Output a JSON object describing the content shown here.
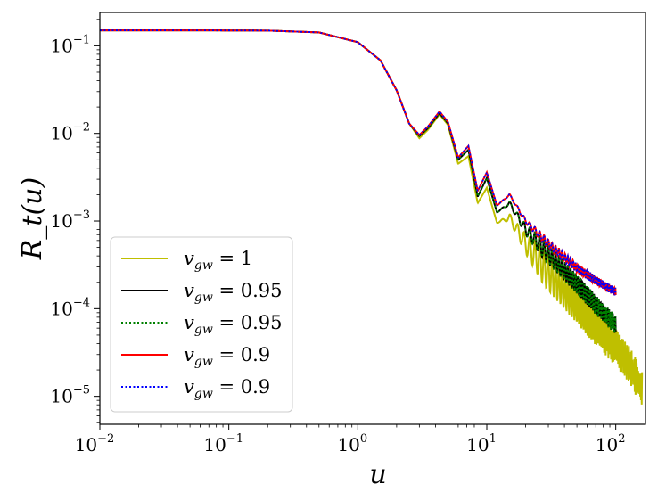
{
  "chart_data": {
    "type": "line",
    "xscale": "log",
    "yscale": "log",
    "xlim": [
      0.01,
      170
    ],
    "ylim": [
      4.8e-06,
      0.24
    ],
    "xlabel": "u",
    "ylabel": "R_t(u)",
    "x_ticks": [
      {
        "value": 0.01,
        "base": "10",
        "exp": "−2"
      },
      {
        "value": 0.1,
        "base": "10",
        "exp": "−1"
      },
      {
        "value": 1,
        "base": "10",
        "exp": "0"
      },
      {
        "value": 10,
        "base": "10",
        "exp": "1"
      },
      {
        "value": 100,
        "base": "10",
        "exp": "2"
      }
    ],
    "y_ticks": [
      {
        "value": 1e-05,
        "base": "10",
        "exp": "−5"
      },
      {
        "value": 0.0001,
        "base": "10",
        "exp": "−4"
      },
      {
        "value": 0.001,
        "base": "10",
        "exp": "−3"
      },
      {
        "value": 0.01,
        "base": "10",
        "exp": "−2"
      },
      {
        "value": 0.1,
        "base": "10",
        "exp": "−1"
      }
    ],
    "legend_position": "lower-left",
    "series": [
      {
        "name": "v_gw = 1",
        "legend_label": "v",
        "legend_sub": "gw",
        "legend_value": " = 1",
        "color": "#bfbf00",
        "dash": "solid",
        "x": [
          0.01,
          0.05,
          0.2,
          0.5,
          1.0,
          1.5,
          2.0,
          2.5,
          3.0,
          3.5,
          4.3,
          5.0,
          6.0,
          7.2,
          8.5,
          10,
          12,
          15,
          20,
          30,
          50,
          70,
          100,
          130,
          160
        ],
        "y": [
          0.15,
          0.15,
          0.149,
          0.142,
          0.11,
          0.068,
          0.031,
          0.013,
          0.0088,
          0.011,
          0.0165,
          0.0125,
          0.0045,
          0.0055,
          0.0016,
          0.0024,
          0.00095,
          0.0011,
          0.00055,
          0.00026,
          0.00011,
          6.2e-05,
          3.6e-05,
          2.2e-05,
          1.2e-05
        ],
        "oscillation": 0.42
      },
      {
        "name": "v_gw = 0.95 (solid)",
        "legend_label": "v",
        "legend_sub": "gw",
        "legend_value": " = 0.95",
        "color": "#000000",
        "dash": "solid",
        "x": [
          0.01,
          0.05,
          0.2,
          0.5,
          1.0,
          1.5,
          2.0,
          2.5,
          3.0,
          3.5,
          4.3,
          5.0,
          6.0,
          7.2,
          8.5,
          10,
          12,
          15,
          20,
          30,
          50,
          70,
          100
        ],
        "y": [
          0.15,
          0.15,
          0.149,
          0.142,
          0.11,
          0.068,
          0.031,
          0.013,
          0.0093,
          0.0115,
          0.017,
          0.013,
          0.005,
          0.0065,
          0.0019,
          0.0031,
          0.00125,
          0.0016,
          0.0008,
          0.00042,
          0.00019,
          0.00011,
          6.5e-05
        ],
        "oscillation": 0.22
      },
      {
        "name": "v_gw = 0.95 (dotted)",
        "legend_label": "v",
        "legend_sub": "gw",
        "legend_value": " = 0.95",
        "color": "#008000",
        "dash": "dotted",
        "x": [
          0.01,
          0.05,
          0.2,
          0.5,
          1.0,
          1.5,
          2.0,
          2.5,
          3.0,
          3.5,
          4.3,
          5.0,
          6.0,
          7.2,
          8.5,
          10,
          12,
          15,
          20,
          30,
          50,
          70,
          100
        ],
        "y": [
          0.15,
          0.15,
          0.149,
          0.142,
          0.11,
          0.068,
          0.031,
          0.013,
          0.0093,
          0.0115,
          0.017,
          0.013,
          0.005,
          0.0065,
          0.0019,
          0.0031,
          0.00125,
          0.0016,
          0.0008,
          0.00042,
          0.00019,
          0.00011,
          6.5e-05
        ],
        "oscillation": 0.22
      },
      {
        "name": "v_gw = 0.9 (solid)",
        "legend_label": "v",
        "legend_sub": "gw",
        "legend_value": " = 0.9",
        "color": "#ff0000",
        "dash": "solid",
        "x": [
          0.01,
          0.05,
          0.2,
          0.5,
          1.0,
          1.5,
          2.0,
          2.5,
          3.0,
          3.5,
          4.3,
          5.0,
          6.0,
          7.2,
          8.5,
          10,
          12,
          15,
          20,
          30,
          50,
          70,
          100
        ],
        "y": [
          0.15,
          0.15,
          0.149,
          0.142,
          0.11,
          0.068,
          0.031,
          0.013,
          0.0096,
          0.012,
          0.0178,
          0.0135,
          0.0053,
          0.0072,
          0.0022,
          0.0036,
          0.0015,
          0.002,
          0.001,
          0.00055,
          0.00029,
          0.00021,
          0.000155
        ],
        "oscillation": 0.1
      },
      {
        "name": "v_gw = 0.9 (dotted)",
        "legend_label": "v",
        "legend_sub": "gw",
        "legend_value": " = 0.9",
        "color": "#0000ff",
        "dash": "dotted",
        "x": [
          0.01,
          0.05,
          0.2,
          0.5,
          1.0,
          1.5,
          2.0,
          2.5,
          3.0,
          3.5,
          4.3,
          5.0,
          6.0,
          7.2,
          8.5,
          10,
          12,
          15,
          20,
          30,
          50,
          70,
          100
        ],
        "y": [
          0.15,
          0.15,
          0.149,
          0.142,
          0.11,
          0.068,
          0.031,
          0.013,
          0.0096,
          0.012,
          0.0178,
          0.0135,
          0.0053,
          0.0072,
          0.0022,
          0.0036,
          0.0015,
          0.002,
          0.001,
          0.00055,
          0.00029,
          0.00021,
          0.000155
        ],
        "oscillation": 0.1
      }
    ]
  }
}
